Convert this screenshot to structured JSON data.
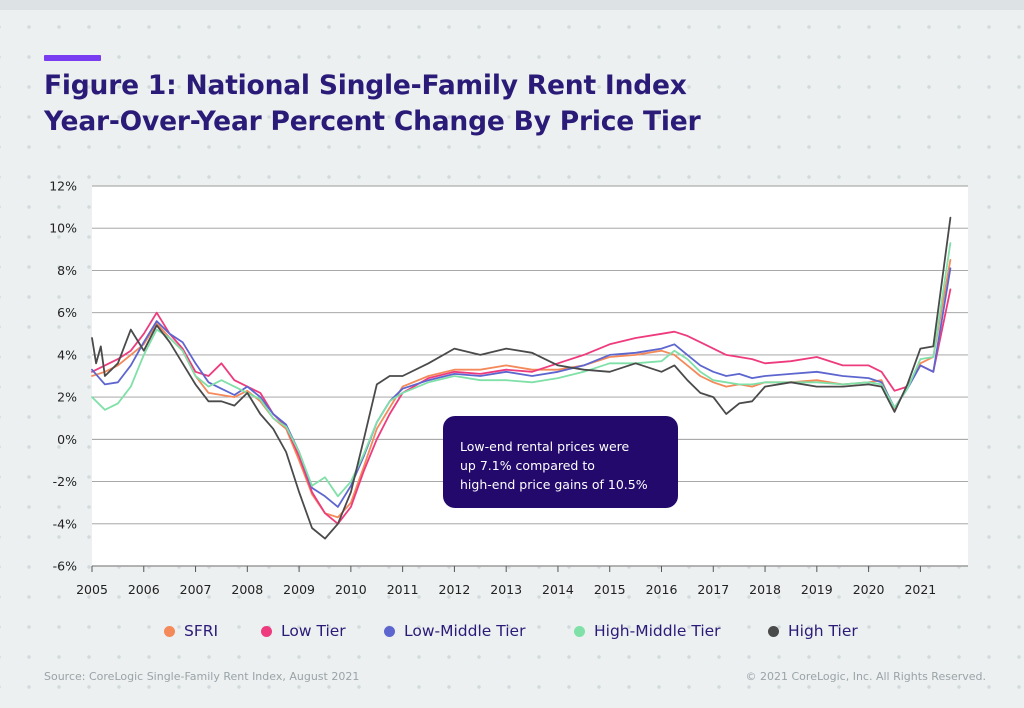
{
  "figure": {
    "title_line1": "Figure 1: National Single-Family Rent Index",
    "title_line2": "Year-Over-Year Percent Change By Price Tier",
    "source": "Source: CoreLogic Single-Family Rent Index, August 2021",
    "copyright": "© 2021 CoreLogic, Inc. All Rights Reserved.",
    "callout_lines": [
      "Low-end rental prices were",
      "up 7.1% compared to",
      "high-end price gains of 10.5%"
    ],
    "accent_color": "#7a3cf0",
    "title_color": "#2b1b78"
  },
  "chart_data": {
    "type": "line",
    "title": "Figure 1: National Single-Family Rent Index Year-Over-Year Percent Change By Price Tier",
    "xlabel": "",
    "ylabel": "",
    "xlim": [
      2005,
      2021.92
    ],
    "ylim": [
      -6,
      12
    ],
    "y_ticks": [
      12,
      10,
      8,
      6,
      4,
      2,
      0,
      -2,
      -4,
      -6
    ],
    "y_tick_labels": [
      "12%",
      "10%",
      "8%",
      "6%",
      "4%",
      "2%",
      "0%",
      "-2%",
      "-4%",
      "-6%"
    ],
    "x_ticks": [
      2005,
      2006,
      2007,
      2008,
      2009,
      2010,
      2011,
      2012,
      2013,
      2014,
      2015,
      2016,
      2017,
      2018,
      2019,
      2020,
      2021
    ],
    "x_tick_labels": [
      "2005",
      "2006",
      "2007",
      "2008",
      "2009",
      "2010",
      "2011",
      "2012",
      "2013",
      "2014",
      "2015",
      "2016",
      "2017",
      "2018",
      "2019",
      "2020",
      "2021"
    ],
    "grid": "horizontal",
    "legend_position": "bottom",
    "series": [
      {
        "name": "SFRI",
        "color": "#f4895a",
        "x": [
          2005.0,
          2005.25,
          2005.5,
          2005.75,
          2006.0,
          2006.25,
          2006.5,
          2006.75,
          2007.0,
          2007.25,
          2007.5,
          2007.75,
          2008.0,
          2008.25,
          2008.5,
          2008.75,
          2009.0,
          2009.25,
          2009.5,
          2009.75,
          2010.0,
          2010.25,
          2010.5,
          2010.75,
          2011.0,
          2011.5,
          2012.0,
          2012.5,
          2013.0,
          2013.5,
          2014.0,
          2014.5,
          2015.0,
          2015.5,
          2016.0,
          2016.25,
          2016.5,
          2016.75,
          2017.0,
          2017.25,
          2017.5,
          2017.75,
          2018.0,
          2018.5,
          2019.0,
          2019.5,
          2020.0,
          2020.25,
          2020.5,
          2020.75,
          2021.0,
          2021.25,
          2021.58
        ],
        "values": [
          3.0,
          3.2,
          3.5,
          4.0,
          4.5,
          5.5,
          4.8,
          4.2,
          3.0,
          2.2,
          2.1,
          2.0,
          2.3,
          1.8,
          1.0,
          0.5,
          -1.0,
          -2.6,
          -3.5,
          -3.7,
          -3.0,
          -1.3,
          0.5,
          1.5,
          2.5,
          3.0,
          3.3,
          3.3,
          3.5,
          3.3,
          3.3,
          3.5,
          3.9,
          4.0,
          4.2,
          4.0,
          3.5,
          3.0,
          2.7,
          2.5,
          2.6,
          2.5,
          2.7,
          2.7,
          2.8,
          2.6,
          2.7,
          2.8,
          1.4,
          2.5,
          3.6,
          3.9,
          8.5
        ]
      },
      {
        "name": "Low Tier",
        "color": "#ee3b7d",
        "x": [
          2005.0,
          2005.25,
          2005.5,
          2005.75,
          2006.0,
          2006.25,
          2006.5,
          2006.75,
          2007.0,
          2007.25,
          2007.5,
          2007.75,
          2008.0,
          2008.25,
          2008.5,
          2008.75,
          2009.0,
          2009.25,
          2009.5,
          2009.75,
          2010.0,
          2010.25,
          2010.5,
          2010.75,
          2011.0,
          2011.5,
          2012.0,
          2012.5,
          2013.0,
          2013.5,
          2014.0,
          2014.5,
          2015.0,
          2015.5,
          2016.0,
          2016.25,
          2016.5,
          2016.75,
          2017.0,
          2017.25,
          2017.5,
          2017.75,
          2018.0,
          2018.5,
          2019.0,
          2019.5,
          2020.0,
          2020.25,
          2020.5,
          2020.75,
          2021.0,
          2021.25,
          2021.58
        ],
        "values": [
          3.2,
          3.5,
          3.8,
          4.2,
          5.0,
          6.0,
          5.0,
          4.3,
          3.2,
          3.0,
          3.6,
          2.8,
          2.5,
          2.2,
          1.2,
          0.6,
          -0.8,
          -2.5,
          -3.5,
          -4.0,
          -3.2,
          -1.5,
          0.0,
          1.2,
          2.2,
          2.9,
          3.2,
          3.1,
          3.3,
          3.2,
          3.6,
          4.0,
          4.5,
          4.8,
          5.0,
          5.1,
          4.9,
          4.6,
          4.3,
          4.0,
          3.9,
          3.8,
          3.6,
          3.7,
          3.9,
          3.5,
          3.5,
          3.2,
          2.3,
          2.5,
          3.5,
          3.2,
          7.1
        ]
      },
      {
        "name": "Low-Middle Tier",
        "color": "#5d66cf",
        "x": [
          2005.0,
          2005.25,
          2005.5,
          2005.75,
          2006.0,
          2006.25,
          2006.5,
          2006.75,
          2007.0,
          2007.25,
          2007.5,
          2007.75,
          2008.0,
          2008.25,
          2008.5,
          2008.75,
          2009.0,
          2009.25,
          2009.5,
          2009.75,
          2010.0,
          2010.25,
          2010.5,
          2010.75,
          2011.0,
          2011.5,
          2012.0,
          2012.5,
          2013.0,
          2013.5,
          2014.0,
          2014.5,
          2015.0,
          2015.5,
          2016.0,
          2016.25,
          2016.5,
          2016.75,
          2017.0,
          2017.25,
          2017.5,
          2017.75,
          2018.0,
          2018.5,
          2019.0,
          2019.5,
          2020.0,
          2020.25,
          2020.5,
          2020.75,
          2021.0,
          2021.25,
          2021.58
        ],
        "values": [
          3.3,
          2.6,
          2.7,
          3.5,
          4.6,
          5.6,
          5.0,
          4.6,
          3.6,
          2.7,
          2.4,
          2.1,
          2.5,
          2.0,
          1.2,
          0.7,
          -0.6,
          -2.3,
          -2.7,
          -3.2,
          -2.2,
          -0.8,
          0.8,
          1.8,
          2.4,
          2.8,
          3.1,
          3.0,
          3.2,
          3.0,
          3.2,
          3.5,
          4.0,
          4.1,
          4.3,
          4.5,
          4.0,
          3.5,
          3.2,
          3.0,
          3.1,
          2.9,
          3.0,
          3.1,
          3.2,
          3.0,
          2.9,
          2.7,
          1.5,
          2.4,
          3.5,
          3.2,
          8.1
        ]
      },
      {
        "name": "High-Middle Tier",
        "color": "#7fe0a8",
        "x": [
          2005.0,
          2005.25,
          2005.5,
          2005.75,
          2006.0,
          2006.25,
          2006.5,
          2006.75,
          2007.0,
          2007.25,
          2007.5,
          2007.75,
          2008.0,
          2008.25,
          2008.5,
          2008.75,
          2009.0,
          2009.25,
          2009.5,
          2009.75,
          2010.0,
          2010.25,
          2010.5,
          2010.75,
          2011.0,
          2011.5,
          2012.0,
          2012.5,
          2013.0,
          2013.5,
          2014.0,
          2014.5,
          2015.0,
          2015.5,
          2016.0,
          2016.25,
          2016.5,
          2016.75,
          2017.0,
          2017.25,
          2017.5,
          2017.75,
          2018.0,
          2018.5,
          2019.0,
          2019.5,
          2020.0,
          2020.25,
          2020.5,
          2020.75,
          2021.0,
          2021.25,
          2021.58
        ],
        "values": [
          2.0,
          1.4,
          1.7,
          2.5,
          4.0,
          5.2,
          4.8,
          4.2,
          3.0,
          2.5,
          2.8,
          2.5,
          2.2,
          1.9,
          1.0,
          0.6,
          -0.6,
          -2.2,
          -1.8,
          -2.7,
          -2.0,
          -0.7,
          0.8,
          1.8,
          2.2,
          2.7,
          3.0,
          2.8,
          2.8,
          2.7,
          2.9,
          3.2,
          3.6,
          3.6,
          3.7,
          4.2,
          3.8,
          3.2,
          2.8,
          2.7,
          2.6,
          2.6,
          2.7,
          2.7,
          2.7,
          2.6,
          2.7,
          2.6,
          1.5,
          2.4,
          3.8,
          3.9,
          9.3
        ]
      },
      {
        "name": "High Tier",
        "color": "#4a4a4a",
        "x": [
          2005.0,
          2005.08,
          2005.17,
          2005.25,
          2005.5,
          2005.75,
          2006.0,
          2006.25,
          2006.5,
          2006.75,
          2007.0,
          2007.25,
          2007.5,
          2007.75,
          2008.0,
          2008.25,
          2008.5,
          2008.75,
          2009.0,
          2009.25,
          2009.5,
          2009.75,
          2010.0,
          2010.25,
          2010.5,
          2010.75,
          2011.0,
          2011.5,
          2012.0,
          2012.5,
          2013.0,
          2013.5,
          2014.0,
          2014.5,
          2015.0,
          2015.5,
          2016.0,
          2016.25,
          2016.5,
          2016.75,
          2017.0,
          2017.25,
          2017.5,
          2017.75,
          2018.0,
          2018.5,
          2019.0,
          2019.5,
          2020.0,
          2020.25,
          2020.5,
          2020.75,
          2021.0,
          2021.25,
          2021.58
        ],
        "values": [
          4.8,
          3.6,
          4.4,
          3.0,
          3.6,
          5.2,
          4.2,
          5.4,
          4.6,
          3.6,
          2.6,
          1.8,
          1.8,
          1.6,
          2.2,
          1.2,
          0.5,
          -0.6,
          -2.5,
          -4.2,
          -4.7,
          -4.0,
          -2.5,
          0.0,
          2.6,
          3.0,
          3.0,
          3.6,
          4.3,
          4.0,
          4.3,
          4.1,
          3.5,
          3.3,
          3.2,
          3.6,
          3.2,
          3.5,
          2.8,
          2.2,
          2.0,
          1.2,
          1.7,
          1.8,
          2.5,
          2.7,
          2.5,
          2.5,
          2.6,
          2.5,
          1.3,
          2.6,
          4.3,
          4.4,
          10.5
        ]
      }
    ]
  }
}
